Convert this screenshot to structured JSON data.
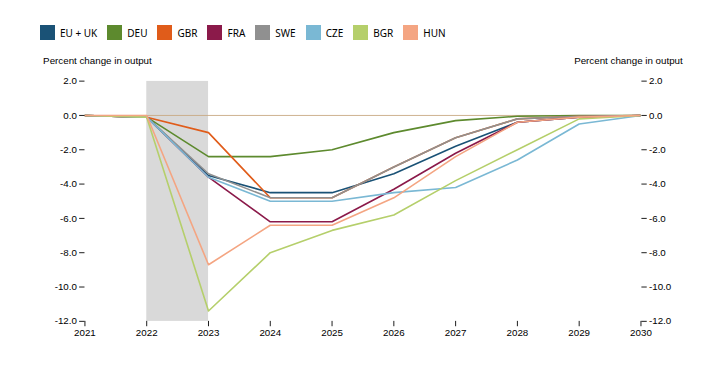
{
  "chart_data": {
    "type": "line",
    "ylabel": "Percent change in output",
    "y2label": "Percent change in output",
    "x": [
      2021,
      2022,
      2023,
      2024,
      2025,
      2026,
      2027,
      2028,
      2029,
      2030
    ],
    "xlim": [
      2021,
      2030
    ],
    "xticks": [
      2021,
      2022,
      2023,
      2024,
      2025,
      2026,
      2027,
      2028,
      2029,
      2030
    ],
    "ylim": [
      -12,
      2
    ],
    "yticks": [
      {
        "value": 2.0,
        "label": "2.0"
      },
      {
        "value": 0.0,
        "label": "0.0"
      },
      {
        "value": -2.0,
        "label": "-2.0"
      },
      {
        "value": -4.0,
        "label": "-4.0"
      },
      {
        "value": -6.0,
        "label": "-6.0"
      },
      {
        "value": -8.0,
        "label": "-8.0"
      },
      {
        "value": -10.0,
        "label": "-10.0"
      },
      {
        "value": -12.0,
        "label": "-12.0"
      }
    ],
    "y2lim": [
      -12,
      2
    ],
    "y2ticks": [
      {
        "value": 2.0,
        "label": "2.0"
      },
      {
        "value": 0.0,
        "label": "0.0"
      },
      {
        "value": -2.0,
        "label": "-2.0"
      },
      {
        "value": -4.0,
        "label": "-4.0"
      },
      {
        "value": -6.0,
        "label": "-6.0"
      },
      {
        "value": -8.0,
        "label": "-8.0"
      },
      {
        "value": -10.0,
        "label": "-10.0"
      },
      {
        "value": -12.0,
        "label": "-12.0"
      }
    ],
    "shaded_x": [
      2022,
      2023
    ],
    "shade_color": "#d9d9d9",
    "reference_line": {
      "y": 0,
      "color": "#c8a882"
    },
    "legend": "top",
    "series": [
      {
        "name": "EU + UK",
        "color": "#1a5276",
        "values": [
          0,
          -0.1,
          -3.5,
          -4.5,
          -4.5,
          -3.4,
          -1.8,
          -0.4,
          -0.1,
          0.0
        ]
      },
      {
        "name": "DEU",
        "color": "#5d8a2e",
        "values": [
          0,
          -0.1,
          -2.4,
          -2.4,
          -2.0,
          -1.0,
          -0.3,
          -0.05,
          0.0,
          0.0
        ]
      },
      {
        "name": "GBR",
        "color": "#e05c1a",
        "values": [
          0,
          -0.1,
          -1.0,
          -4.8,
          -4.8,
          -3.0,
          -1.3,
          -0.2,
          -0.05,
          0.0
        ]
      },
      {
        "name": "FRA",
        "color": "#8b1a4a",
        "values": [
          0,
          -0.1,
          -3.6,
          -6.2,
          -6.2,
          -4.3,
          -2.2,
          -0.4,
          -0.1,
          0.0
        ]
      },
      {
        "name": "SWE",
        "color": "#909090",
        "values": [
          0,
          -0.1,
          -3.4,
          -4.8,
          -4.8,
          -3.0,
          -1.3,
          -0.2,
          -0.05,
          0.0
        ]
      },
      {
        "name": "CZE",
        "color": "#7ab8d4",
        "values": [
          0,
          -0.1,
          -3.6,
          -5.0,
          -5.0,
          -4.5,
          -4.2,
          -2.6,
          -0.5,
          0.0
        ]
      },
      {
        "name": "BGR",
        "color": "#b5cf6b",
        "values": [
          0,
          -0.1,
          -11.4,
          -8.0,
          -6.7,
          -5.8,
          -3.8,
          -2.0,
          -0.2,
          0.0
        ]
      },
      {
        "name": "HUN",
        "color": "#f4a582",
        "values": [
          0,
          0.0,
          -8.7,
          -6.4,
          -6.4,
          -4.8,
          -2.4,
          -0.4,
          -0.1,
          0.0
        ]
      }
    ]
  }
}
